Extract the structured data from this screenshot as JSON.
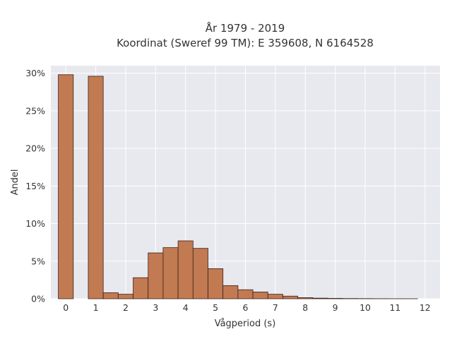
{
  "chart_data": {
    "type": "bar",
    "title": "År 1979 - 2019",
    "subtitle": "Koordinat (Sweref 99 TM): E 359608, N 6164528",
    "xlabel": "Vågperiod (s)",
    "ylabel": "Andel",
    "xlim": [
      -0.5,
      12.5
    ],
    "ylim": [
      0,
      31
    ],
    "grid": true,
    "bar_width": 0.5,
    "x": [
      0,
      1,
      1.5,
      2,
      2.5,
      3,
      3.5,
      4,
      4.5,
      5,
      5.5,
      6,
      6.5,
      7,
      7.5,
      8,
      8.5,
      9,
      9.5,
      10,
      10.5,
      11,
      11.5
    ],
    "values": [
      29.8,
      29.6,
      0.8,
      0.6,
      2.8,
      6.1,
      6.8,
      7.7,
      6.7,
      4.0,
      1.75,
      1.2,
      0.9,
      0.6,
      0.35,
      0.15,
      0.08,
      0.05,
      0.03,
      0.02,
      0.01,
      0.005,
      0.003
    ],
    "xticks": [
      0,
      1,
      2,
      3,
      4,
      5,
      6,
      7,
      8,
      9,
      10,
      11,
      12
    ],
    "xtick_labels": [
      "0",
      "1",
      "2",
      "3",
      "4",
      "5",
      "6",
      "7",
      "8",
      "9",
      "10",
      "11",
      "12"
    ],
    "yticks": [
      0,
      5,
      10,
      15,
      20,
      25,
      30
    ],
    "ytick_labels": [
      "0%",
      "5%",
      "10%",
      "15%",
      "20%",
      "25%",
      "30%"
    ],
    "colors": {
      "bar_fill": "#c27a52",
      "bar_edge": "#3a2218",
      "plot_bg": "#e8e8ef",
      "grid": "#ffffff"
    }
  }
}
